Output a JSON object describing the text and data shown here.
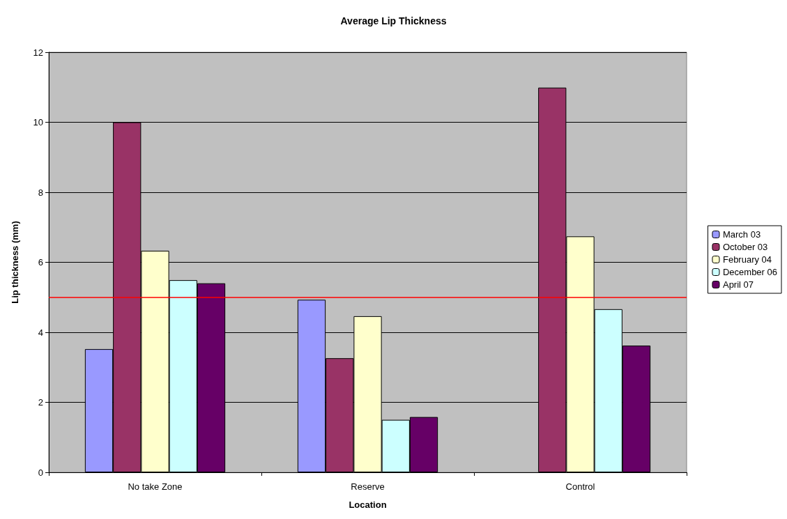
{
  "chart_data": {
    "type": "bar",
    "title": "Average Lip Thickness",
    "xlabel": "Location",
    "ylabel": "Lip thickness (mm)",
    "categories": [
      "No take Zone",
      "Reserve",
      "Control"
    ],
    "series": [
      {
        "name": "March 03",
        "color": "#9999ff",
        "values": [
          3.52,
          4.93,
          null
        ]
      },
      {
        "name": "October 03",
        "color": "#993366",
        "values": [
          10.0,
          3.26,
          10.99
        ]
      },
      {
        "name": "February 04",
        "color": "#ffffcc",
        "values": [
          6.33,
          4.46,
          6.74
        ]
      },
      {
        "name": "December 06",
        "color": "#ccffff",
        "values": [
          5.49,
          1.5,
          4.66
        ]
      },
      {
        "name": "April 07",
        "color": "#660066",
        "values": [
          5.4,
          1.58,
          3.62
        ]
      }
    ],
    "ylim": [
      0,
      12
    ],
    "yticks": [
      0,
      2,
      4,
      6,
      8,
      10,
      12
    ],
    "grid": "y",
    "legend": "right",
    "ref_lines": [
      {
        "axis": "y",
        "value": 5,
        "color": "#ff0000"
      }
    ]
  }
}
